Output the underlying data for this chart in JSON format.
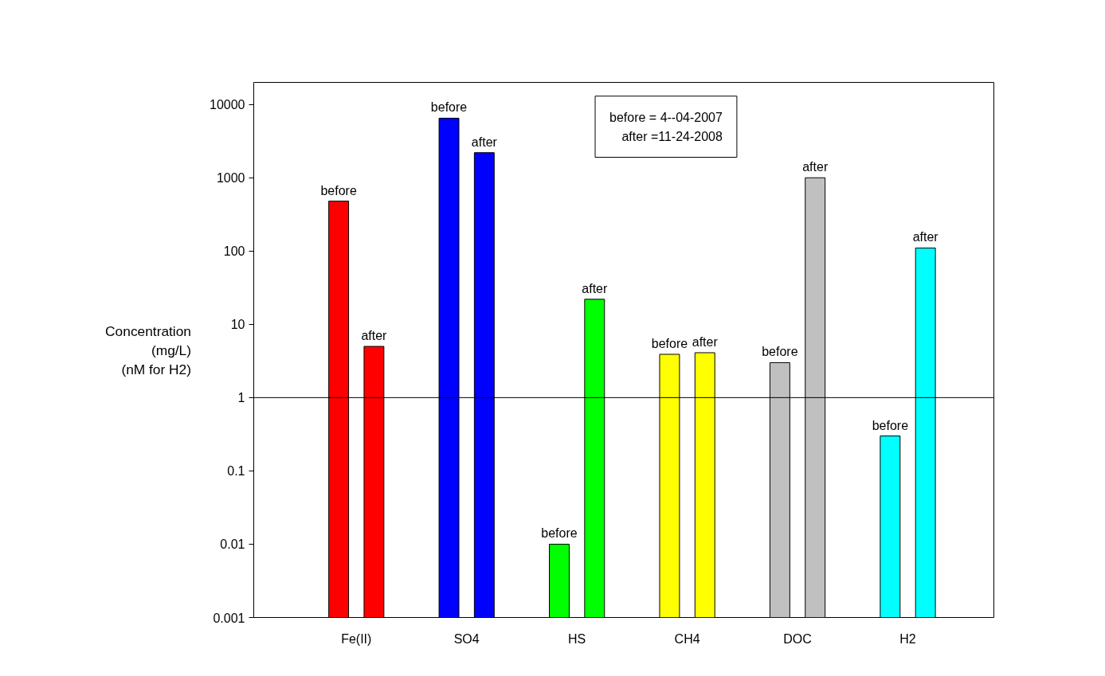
{
  "chart_data": {
    "type": "bar",
    "ylabel": "Concentration\n(mg/L)\n(nM for H2)",
    "categories": [
      "Fe(II)",
      "SO4",
      "HS",
      "CH4",
      "DOC",
      "H2"
    ],
    "series": [
      {
        "name": "before",
        "colors": [
          "#ff0000",
          "#0000ff",
          "#00ff00",
          "#ffff00",
          "#c0c0c0",
          "#00ffff"
        ],
        "values": [
          480,
          6500,
          0.01,
          3.9,
          3,
          0.3
        ]
      },
      {
        "name": "after",
        "colors": [
          "#ff0000",
          "#0000ff",
          "#00ff00",
          "#ffff00",
          "#c0c0c0",
          "#00ffff"
        ],
        "values": [
          5,
          2200,
          22,
          4.1,
          1000,
          110
        ]
      }
    ],
    "log": true,
    "ylim": [
      0.001,
      20000
    ],
    "yticks": [
      0.001,
      0.01,
      0.1,
      1,
      10,
      100,
      1000,
      10000
    ],
    "grid": false,
    "ref_lines": [
      {
        "axis": "y",
        "value": 1,
        "color": "#000000"
      }
    ],
    "annotations": [
      "before = 4--04-2007",
      "after =11-24-2008"
    ]
  }
}
